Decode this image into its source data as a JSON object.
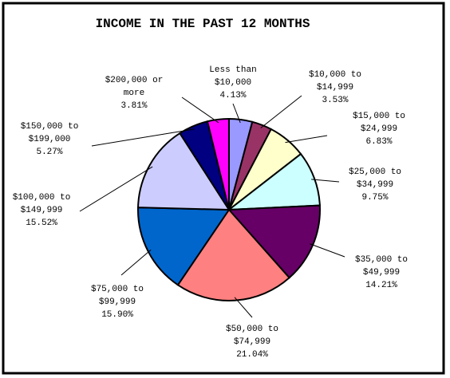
{
  "chart_data": {
    "type": "pie",
    "title": "INCOME IN THE PAST 12 MONTHS",
    "categories": [
      [
        "Less than",
        "$10,000"
      ],
      [
        "$10,000 to",
        "$14,999"
      ],
      [
        "$15,000 to",
        "$24,999"
      ],
      [
        "$25,000 to",
        "$34,999"
      ],
      [
        "$35,000 to",
        "$49,999"
      ],
      [
        "$50,000 to",
        "$74,999"
      ],
      [
        "$75,000 to",
        "$99,999"
      ],
      [
        "$100,000 to",
        "$149,999"
      ],
      [
        "$150,000 to",
        "$199,000"
      ],
      [
        "$200,000 or",
        "more"
      ]
    ],
    "values": [
      4.13,
      3.53,
      6.83,
      9.75,
      14.21,
      21.04,
      15.9,
      15.52,
      5.27,
      3.81
    ],
    "value_labels": [
      "4.13%",
      "3.53%",
      "6.83%",
      "9.75%",
      "14.21%",
      "21.04%",
      "15.90%",
      "15.52%",
      "5.27%",
      "3.81%"
    ],
    "colors": [
      "#9999ff",
      "#993366",
      "#ffffcc",
      "#ccffff",
      "#660066",
      "#ff8080",
      "#0066cc",
      "#ccccff",
      "#000080",
      "#ff00ff"
    ]
  }
}
